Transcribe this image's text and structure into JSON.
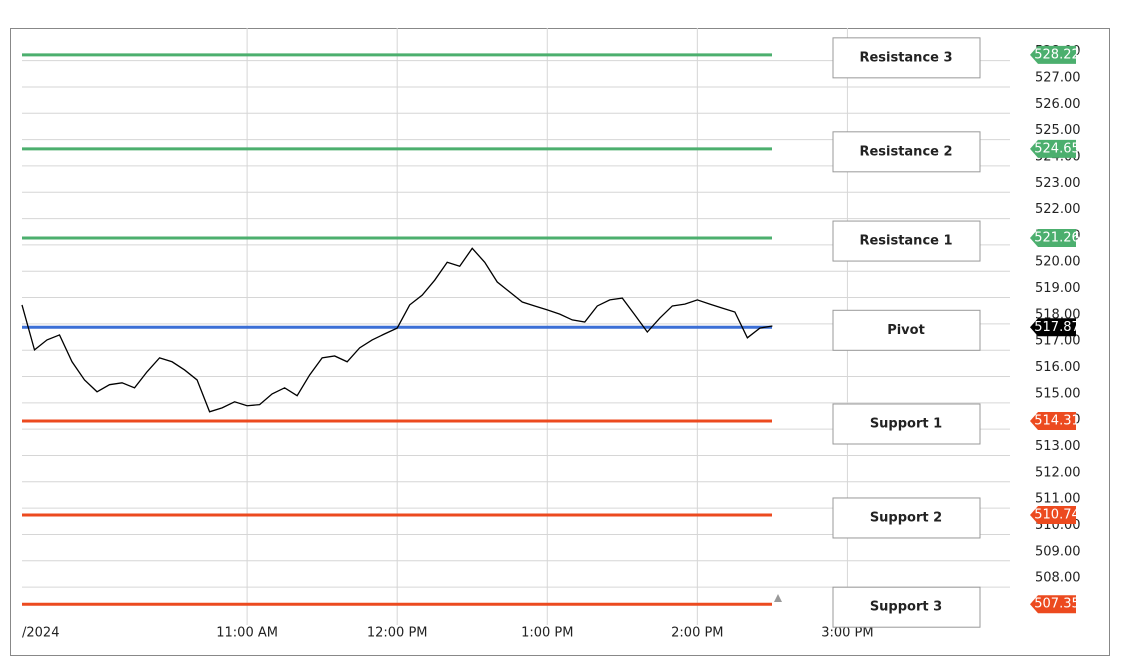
{
  "chart_data": {
    "type": "line",
    "date_label": "/2024",
    "x": [
      "9:30",
      "9:35",
      "9:40",
      "9:45",
      "9:50",
      "9:55",
      "10:00",
      "10:05",
      "10:10",
      "10:15",
      "10:20",
      "10:25",
      "10:30",
      "10:35",
      "10:40",
      "10:45",
      "10:50",
      "10:55",
      "11:00",
      "11:05",
      "11:10",
      "11:15",
      "11:20",
      "11:25",
      "11:30",
      "11:35",
      "11:40",
      "11:45",
      "11:50",
      "11:55",
      "12:00",
      "12:05",
      "12:10",
      "12:15",
      "12:20",
      "12:25",
      "12:30",
      "12:35",
      "12:40",
      "12:45",
      "12:50",
      "12:55",
      "13:00",
      "13:05",
      "13:10",
      "13:15",
      "13:20",
      "13:25",
      "13:30",
      "13:35",
      "13:40",
      "13:45",
      "13:50",
      "13:55",
      "14:00",
      "14:05",
      "14:10",
      "14:15",
      "14:20",
      "14:25",
      "14:30"
    ],
    "values": [
      518.72,
      517.01,
      517.39,
      517.58,
      516.56,
      515.87,
      515.42,
      515.69,
      515.76,
      515.57,
      516.18,
      516.71,
      516.56,
      516.25,
      515.87,
      514.66,
      514.81,
      515.04,
      514.89,
      514.93,
      515.34,
      515.57,
      515.27,
      516.06,
      516.71,
      516.78,
      516.56,
      517.09,
      517.39,
      517.62,
      517.84,
      518.72,
      519.09,
      519.66,
      520.34,
      520.19,
      520.87,
      520.34,
      519.59,
      519.21,
      518.83,
      518.68,
      518.53,
      518.37,
      518.15,
      518.07,
      518.68,
      518.91,
      518.98,
      518.34,
      517.69,
      518.22,
      518.68,
      518.75,
      518.91,
      518.75,
      518.6,
      518.45,
      517.47,
      517.84,
      517.92
    ],
    "color": "#000000",
    "levels": [
      {
        "name": "Resistance 3",
        "value": 528.22,
        "color": "#4caf6e"
      },
      {
        "name": "Resistance 2",
        "value": 524.65,
        "color": "#4caf6e"
      },
      {
        "name": "Resistance 1",
        "value": 521.26,
        "color": "#4caf6e"
      },
      {
        "name": "Pivot",
        "value": 517.87,
        "color": "#3b6fd6",
        "tag_color": "#000000"
      },
      {
        "name": "Support 1",
        "value": 514.31,
        "color": "#ec4a1f"
      },
      {
        "name": "Support 2",
        "value": 510.74,
        "color": "#ec4a1f"
      },
      {
        "name": "Support 3",
        "value": 507.35,
        "color": "#ec4a1f"
      }
    ],
    "xlim": [
      "9:30",
      "16:05"
    ],
    "xticks": [
      {
        "value": "11:00",
        "label": "11:00 AM"
      },
      {
        "value": "12:00",
        "label": "12:00 PM"
      },
      {
        "value": "13:00",
        "label": "1:00 PM"
      },
      {
        "value": "14:00",
        "label": "2:00 PM"
      },
      {
        "value": "15:00",
        "label": "3:00 PM"
      }
    ],
    "ylim": [
      506.56,
      529.24
    ],
    "yticks": [
      {
        "value": 508,
        "label": "508.00"
      },
      {
        "value": 509,
        "label": "509.00"
      },
      {
        "value": 510,
        "label": "510.00"
      },
      {
        "value": 511,
        "label": "511.00"
      },
      {
        "value": 512,
        "label": "512.00"
      },
      {
        "value": 513,
        "label": "513.00"
      },
      {
        "value": 514,
        "label": "514.00"
      },
      {
        "value": 515,
        "label": "515.00"
      },
      {
        "value": 516,
        "label": "516.00"
      },
      {
        "value": 517,
        "label": "517.00"
      },
      {
        "value": 518,
        "label": "518.00"
      },
      {
        "value": 519,
        "label": "519.00"
      },
      {
        "value": 520,
        "label": "520.00"
      },
      {
        "value": 521,
        "label": "521.00"
      },
      {
        "value": 522,
        "label": "522.00"
      },
      {
        "value": 523,
        "label": "523.00"
      },
      {
        "value": 524,
        "label": "524.00"
      },
      {
        "value": 525,
        "label": "525.00"
      },
      {
        "value": 526,
        "label": "526.00"
      },
      {
        "value": 527,
        "label": "527.00"
      },
      {
        "value": 528,
        "label": "528.00"
      }
    ],
    "grid": true
  }
}
